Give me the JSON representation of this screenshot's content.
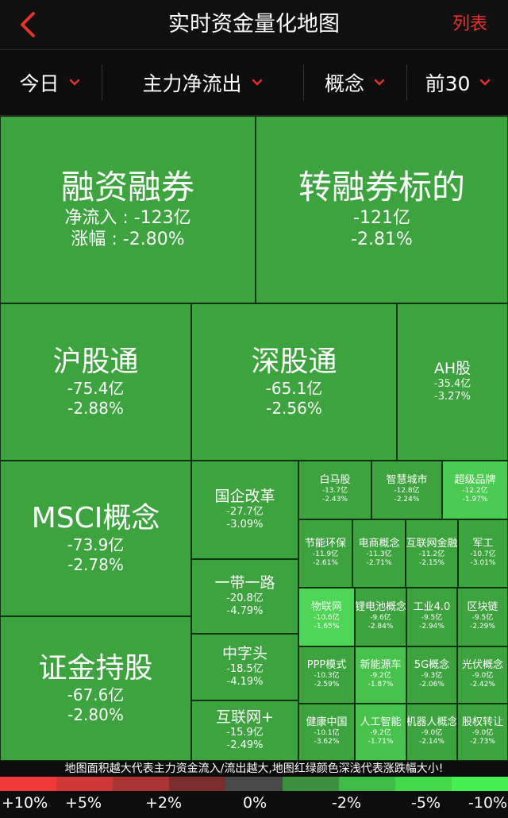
{
  "header": {
    "title": "实时资金量化地图",
    "list_label": "列表",
    "back_icon": "chevron-left-icon"
  },
  "filters": [
    {
      "label": "今日"
    },
    {
      "label": "主力净流出"
    },
    {
      "label": "概念"
    },
    {
      "label": "前30"
    }
  ],
  "tiles": [
    {
      "name": "融资融券",
      "flow": "净流入 : -123亿",
      "change": "涨幅 : -2.80%"
    },
    {
      "name": "转融券标的",
      "flow": "-121亿",
      "change": "-2.81%"
    },
    {
      "name": "沪股通",
      "flow": "-75.4亿",
      "change": "-2.88%"
    },
    {
      "name": "深股通",
      "flow": "-65.1亿",
      "change": "-2.56%"
    },
    {
      "name": "AH股",
      "flow": "-35.4亿",
      "change": "-3.27%"
    },
    {
      "name": "MSCI概念",
      "flow": "-73.9亿",
      "change": "-2.78%"
    },
    {
      "name": "证金持股",
      "flow": "-67.6亿",
      "change": "-2.80%"
    },
    {
      "name": "国企改革",
      "flow": "-27.7亿",
      "change": "-3.09%"
    },
    {
      "name": "一带一路",
      "flow": "-20.8亿",
      "change": "-4.79%"
    },
    {
      "name": "中字头",
      "flow": "-18.5亿",
      "change": "-4.19%"
    },
    {
      "name": "互联网+",
      "flow": "-15.9亿",
      "change": "-2.49%"
    },
    {
      "name": "白马股",
      "flow": "-13.7亿",
      "change": "-2.43%"
    },
    {
      "name": "智慧城市",
      "flow": "-12.8亿",
      "change": "-2.24%"
    },
    {
      "name": "超级品牌",
      "flow": "-12.2亿",
      "change": "-1.97%"
    },
    {
      "name": "节能环保",
      "flow": "-11.9亿",
      "change": "-2.61%"
    },
    {
      "name": "电商概念",
      "flow": "-11.3亿",
      "change": "-2.71%"
    },
    {
      "name": "互联网金融",
      "flow": "-11.2亿",
      "change": "-2.15%"
    },
    {
      "name": "军工",
      "flow": "-10.7亿",
      "change": "-3.01%"
    },
    {
      "name": "物联网",
      "flow": "-10.6亿",
      "change": "-1.65%"
    },
    {
      "name": "锂电池概念",
      "flow": "-9.6亿",
      "change": "-2.84%"
    },
    {
      "name": "工业4.0",
      "flow": "-9.5亿",
      "change": "-2.94%"
    },
    {
      "name": "区块链",
      "flow": "-9.5亿",
      "change": "-2.29%"
    },
    {
      "name": "PPP模式",
      "flow": "-10.3亿",
      "change": "-2.59%"
    },
    {
      "name": "新能源车",
      "flow": "-9.2亿",
      "change": "-1.87%"
    },
    {
      "name": "5G概念",
      "flow": "-9.3亿",
      "change": "-2.06%"
    },
    {
      "name": "光伏概念",
      "flow": "-9.0亿",
      "change": "-2.42%"
    },
    {
      "name": "健康中国",
      "flow": "-10.1亿",
      "change": "-3.62%"
    },
    {
      "name": "人工智能",
      "flow": "-9.2亿",
      "change": "-1.71%"
    },
    {
      "name": "机器人概念",
      "flow": "-9.0亿",
      "change": "-2.14%"
    },
    {
      "name": "股权转让",
      "flow": "-9.0亿",
      "change": "-2.73%"
    }
  ],
  "footer_note": "地图面积越大代表主力资金流入/流出越大,地图红绿颜色深浅代表涨跌幅大小!",
  "legend": {
    "colors": [
      "#f03a3a",
      "#d03838",
      "#a93434",
      "#7a2e2e",
      "#4a4a4a",
      "#3b8f3d",
      "#3fbb47",
      "#41d84a",
      "#46ef52"
    ],
    "labels": [
      "+10%",
      "+5%",
      "+2%",
      "0%",
      "-2%",
      "-5%",
      "-10%"
    ]
  },
  "colors": {
    "tile_green": "#3da33f",
    "tile_light": "#47c24b",
    "tile_lighter": "#4fd656",
    "accent_red": "#e5322d"
  }
}
